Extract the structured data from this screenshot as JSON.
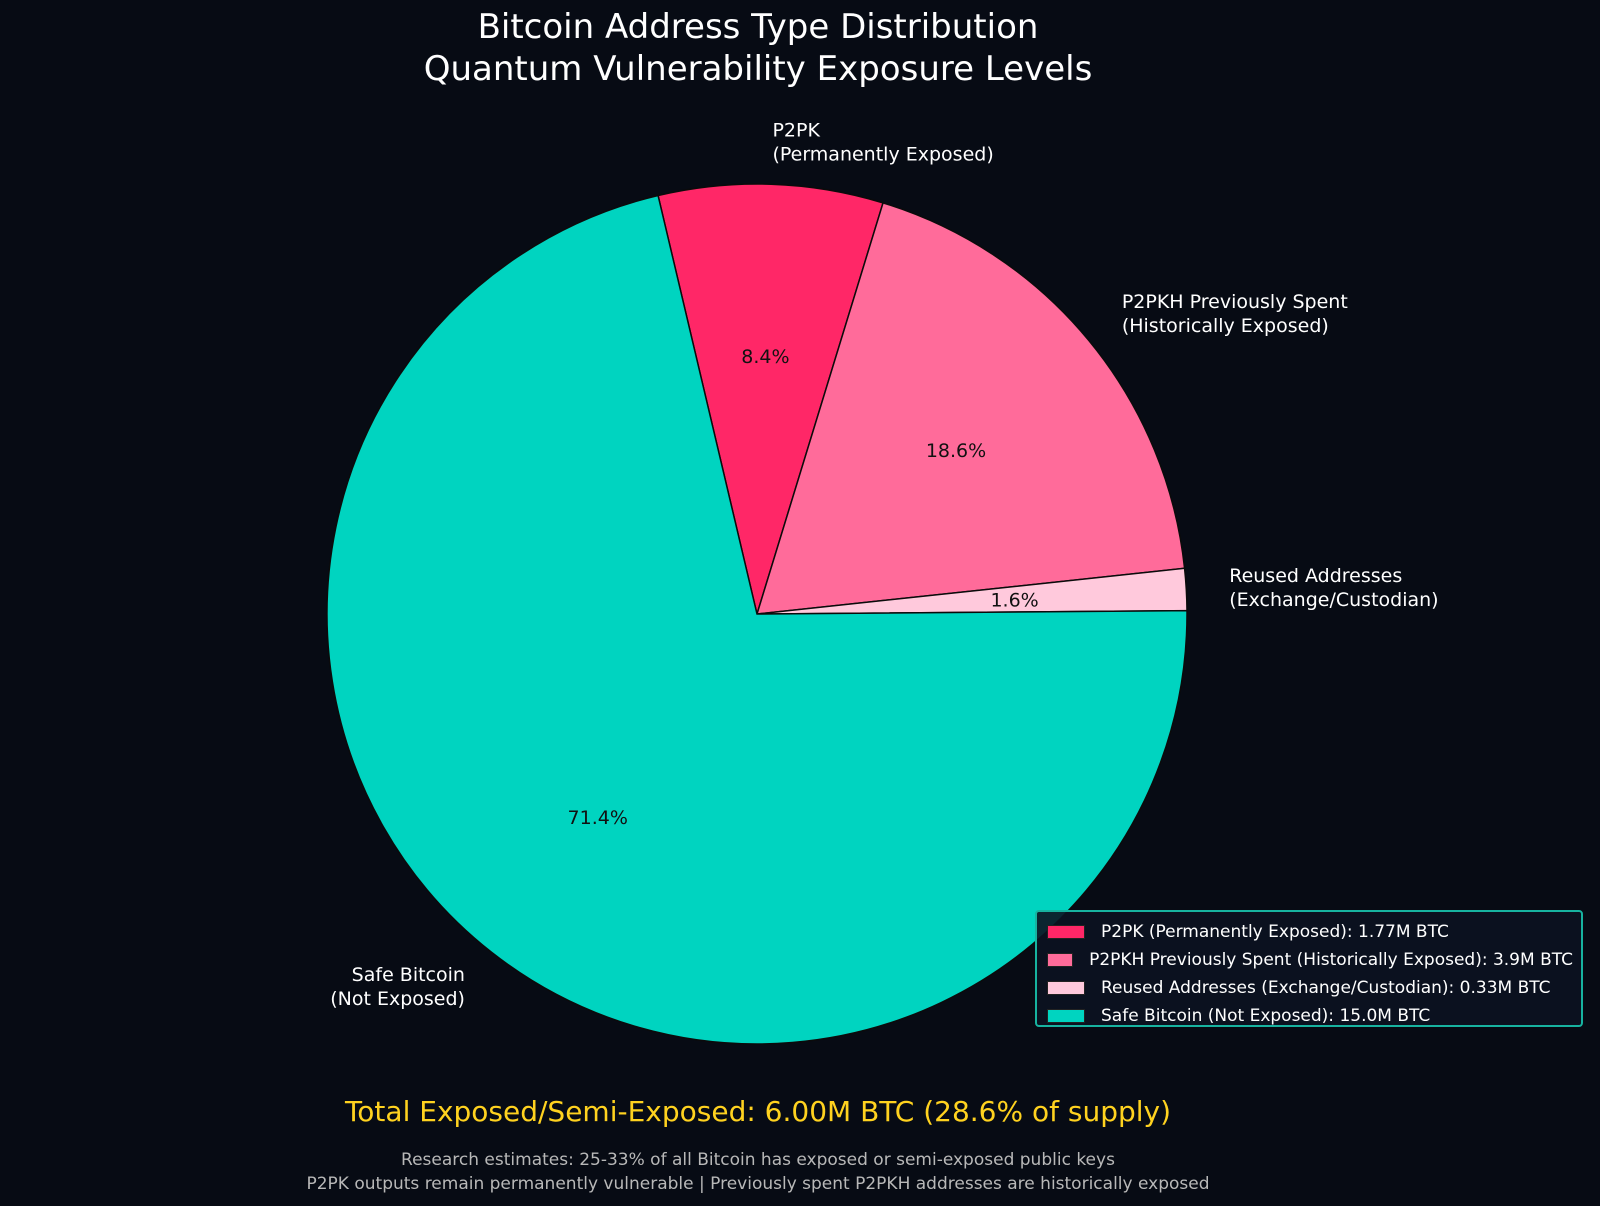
{
  "chart_data": {
    "type": "pie",
    "title": "Bitcoin Address Type Distribution\nQuantum Vulnerability Exposure Levels",
    "title_lines": [
      "Bitcoin Address Type Distribution",
      "Quantum Vulnerability Exposure Levels"
    ],
    "categories": [
      "P2PK (Permanently Exposed)",
      "P2PKH Previously Spent (Historically Exposed)",
      "Reused Addresses (Exchange/Custodian)",
      "Safe Bitcoin (Not Exposed)"
    ],
    "values": [
      1.77,
      3.9,
      0.33,
      15.0
    ],
    "unit": "M BTC",
    "percentages": [
      "8.4%",
      "18.6%",
      "1.6%",
      "71.4%"
    ],
    "colors": [
      "#ff2767",
      "#ff6b9a",
      "#ffc9dc",
      "#00d4c0"
    ],
    "slice_labels": [
      [
        "P2PK",
        "(Permanently Exposed)"
      ],
      [
        "P2PKH Previously Spent",
        "(Historically Exposed)"
      ],
      [
        "Reused Addresses",
        "(Exchange/Custodian)"
      ],
      [
        "Safe Bitcoin",
        "(Not Exposed)"
      ]
    ],
    "legend": [
      "P2PK (Permanently Exposed): 1.77M BTC",
      "P2PKH Previously Spent (Historically Exposed): 3.9M BTC",
      "Reused Addresses (Exchange/Custodian): 0.33M BTC",
      "Safe Bitcoin (Not Exposed): 15.0M BTC"
    ],
    "legend_position": "lower right",
    "start_angle_deg": 103.3,
    "counterclock": false
  },
  "footer": {
    "total": "Total Exposed/Semi-Exposed: 6.00M BTC (28.6% of supply)",
    "note_1": "Research estimates: 25-33% of all Bitcoin has exposed or semi-exposed public keys",
    "note_2": "P2PK outputs remain permanently vulnerable | Previously spent P2PKH addresses are historically exposed"
  },
  "colors": {
    "background": "#070b14",
    "total_text": "#ffd21f",
    "legend_border": "#17b3a0"
  }
}
